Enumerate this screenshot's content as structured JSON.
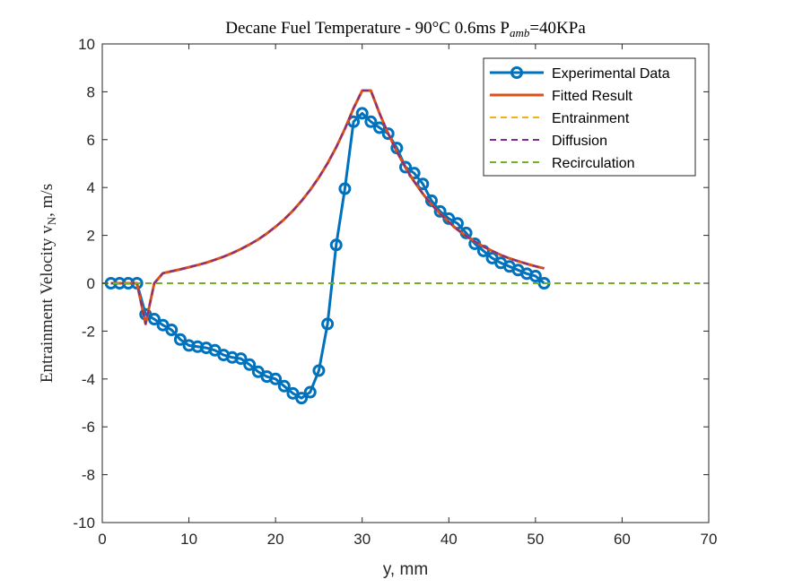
{
  "chart_data": {
    "type": "line",
    "title": "Decane Fuel Temperature - 90°C 0.6ms P",
    "title_sub": "amb",
    "title_tail": "=40KPa",
    "xlabel": "y, mm",
    "ylabel": "Entrainment Velocity v",
    "ylabel_sub": "N",
    "ylabel_tail": ", m/s",
    "xlim": [
      0,
      70
    ],
    "ylim": [
      -10,
      10
    ],
    "xticks": [
      "0",
      "10",
      "20",
      "30",
      "40",
      "50",
      "60",
      "70"
    ],
    "yticks": [
      "-10",
      "-8",
      "-6",
      "-4",
      "-2",
      "0",
      "2",
      "4",
      "6",
      "8",
      "10"
    ],
    "grid": false,
    "legend_position": "top-right",
    "series": [
      {
        "name": "Experimental Data",
        "color": "#0072BD",
        "style": "solid-marker",
        "x": [
          1,
          2,
          3,
          4,
          5,
          6,
          7,
          8,
          9,
          10,
          11,
          12,
          13,
          14,
          15,
          16,
          17,
          18,
          19,
          20,
          21,
          22,
          23,
          24,
          25,
          26,
          27,
          28,
          29,
          30,
          31,
          32,
          33,
          34,
          35,
          36,
          37,
          38,
          39,
          40,
          41,
          42,
          43,
          44,
          45,
          46,
          47,
          48,
          49,
          50,
          51
        ],
        "y": [
          0,
          0,
          0,
          0,
          -1.3,
          -1.5,
          -1.75,
          -1.95,
          -2.35,
          -2.6,
          -2.65,
          -2.7,
          -2.8,
          -3.0,
          -3.1,
          -3.15,
          -3.4,
          -3.7,
          -3.9,
          -4.0,
          -4.3,
          -4.6,
          -4.8,
          -4.55,
          -3.65,
          -1.7,
          1.6,
          3.95,
          6.75,
          7.1,
          6.75,
          6.5,
          6.25,
          5.65,
          4.85,
          4.6,
          4.15,
          3.45,
          3.0,
          2.7,
          2.5,
          2.1,
          1.65,
          1.35,
          1.05,
          0.85,
          0.7,
          0.55,
          0.4,
          0.3,
          0.0
        ]
      },
      {
        "name": "Fitted Result",
        "color": "#D95319",
        "style": "solid",
        "x": [
          1,
          2,
          3,
          4,
          5,
          6,
          7,
          8,
          9,
          10,
          11,
          12,
          13,
          14,
          15,
          16,
          17,
          18,
          19,
          20,
          21,
          22,
          23,
          24,
          25,
          26,
          27,
          28,
          29,
          30,
          31,
          32,
          33,
          34,
          35,
          36,
          37,
          38,
          39,
          40,
          41,
          42,
          43,
          44,
          45,
          46,
          47,
          48,
          49,
          50,
          51
        ],
        "y": [
          0,
          0,
          0,
          0,
          -1.7,
          0,
          0.42,
          0.5,
          0.58,
          0.67,
          0.76,
          0.86,
          0.98,
          1.11,
          1.26,
          1.43,
          1.62,
          1.83,
          2.08,
          2.36,
          2.67,
          3.03,
          3.44,
          3.9,
          4.42,
          5.01,
          5.68,
          6.45,
          7.31,
          8.05,
          8.05,
          7.1,
          6.25,
          5.5,
          4.83,
          4.25,
          3.74,
          3.29,
          2.9,
          2.55,
          2.24,
          1.97,
          1.74,
          1.53,
          1.35,
          1.18,
          1.04,
          0.92,
          0.81,
          0.71,
          0.62
        ]
      },
      {
        "name": "Entrainment",
        "color": "#EDB120",
        "style": "dashed",
        "x": [
          0,
          69
        ],
        "y": [
          0,
          0
        ]
      },
      {
        "name": "Diffusion",
        "color": "#7E2F8E",
        "style": "dashed",
        "x": [
          1,
          2,
          3,
          4,
          5,
          6,
          7,
          8,
          9,
          10,
          11,
          12,
          13,
          14,
          15,
          16,
          17,
          18,
          19,
          20,
          21,
          22,
          23,
          24,
          25,
          26,
          27,
          28,
          29,
          30,
          31,
          32,
          33,
          34,
          35,
          36,
          37,
          38,
          39,
          40,
          41,
          42,
          43,
          44,
          45,
          46,
          47,
          48,
          49,
          50,
          51
        ],
        "y": [
          0,
          0,
          0,
          0,
          -1.7,
          0,
          0.42,
          0.5,
          0.58,
          0.67,
          0.76,
          0.86,
          0.98,
          1.11,
          1.26,
          1.43,
          1.62,
          1.83,
          2.08,
          2.36,
          2.67,
          3.03,
          3.44,
          3.9,
          4.42,
          5.01,
          5.68,
          6.45,
          7.31,
          8.05,
          8.05,
          7.1,
          6.25,
          5.5,
          4.83,
          4.25,
          3.74,
          3.29,
          2.9,
          2.55,
          2.24,
          1.97,
          1.74,
          1.53,
          1.35,
          1.18,
          1.04,
          0.92,
          0.81,
          0.71,
          0.62
        ]
      },
      {
        "name": "Recirculation",
        "color": "#77AC30",
        "style": "dashed",
        "x": [
          0,
          69
        ],
        "y": [
          0,
          0
        ]
      }
    ]
  }
}
